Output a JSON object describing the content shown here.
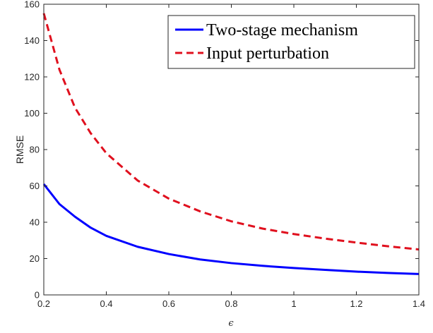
{
  "chart_data": {
    "type": "line",
    "title": "",
    "xlabel": "ϵ",
    "ylabel": "RMSE",
    "xlim": [
      0.2,
      1.4
    ],
    "ylim": [
      0,
      160
    ],
    "xticks": [
      0.2,
      0.4,
      0.6,
      0.8,
      1,
      1.2,
      1.4
    ],
    "xtick_labels": [
      "0.2",
      "0.4",
      "0.6",
      "0.8",
      "1",
      "1.2",
      "1.4"
    ],
    "yticks": [
      0,
      20,
      40,
      60,
      80,
      100,
      120,
      140,
      160
    ],
    "ytick_labels": [
      "0",
      "20",
      "40",
      "60",
      "80",
      "100",
      "120",
      "140",
      "160"
    ],
    "grid": false,
    "legend_position": "top-right",
    "series": [
      {
        "name": "Two-stage mechanism",
        "color": "#0000ff",
        "style": "solid",
        "x": [
          0.2,
          0.25,
          0.3,
          0.35,
          0.4,
          0.5,
          0.6,
          0.7,
          0.8,
          0.9,
          1.0,
          1.1,
          1.2,
          1.3,
          1.4
        ],
        "values": [
          61,
          50,
          43,
          37,
          32.5,
          26.5,
          22.5,
          19.5,
          17.5,
          16,
          14.8,
          13.8,
          12.8,
          12.1,
          11.5
        ]
      },
      {
        "name": "Input perturbation",
        "color": "#e0101e",
        "style": "dashed",
        "x": [
          0.2,
          0.25,
          0.3,
          0.35,
          0.4,
          0.5,
          0.6,
          0.7,
          0.8,
          0.9,
          1.0,
          1.1,
          1.2,
          1.3,
          1.4
        ],
        "values": [
          155,
          124,
          103,
          89,
          78,
          63,
          53,
          46,
          40.5,
          36.5,
          33.5,
          31,
          28.8,
          26.8,
          25
        ]
      }
    ]
  }
}
